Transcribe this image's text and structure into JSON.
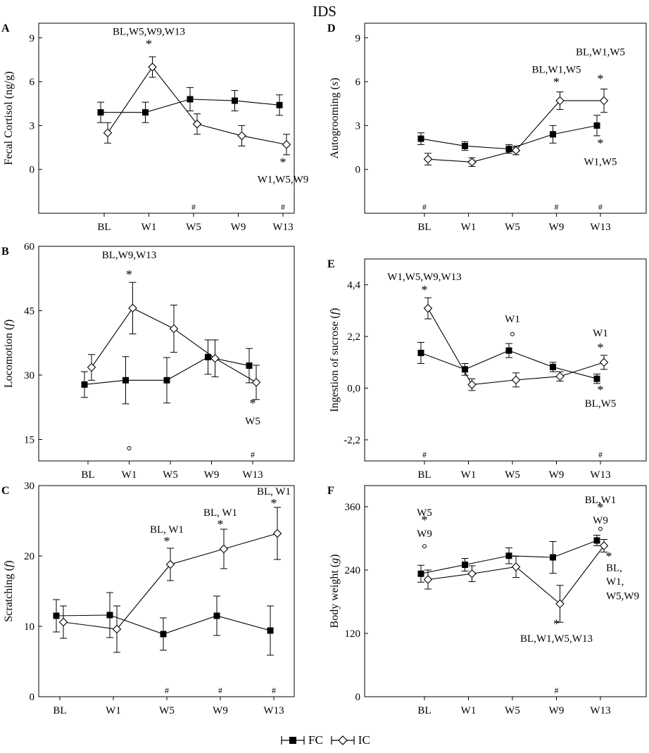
{
  "figure_title": "IDS",
  "legend": {
    "fc": {
      "label": "FC",
      "marker": "filled-square"
    },
    "ic": {
      "label": "IC",
      "marker": "open-diamond"
    }
  },
  "chart_data": [
    {
      "panel": "A",
      "type": "line",
      "ylabel_main": "Fecal Cortisol (ng/g)",
      "categories": [
        "BL",
        "W1",
        "W5",
        "W9",
        "W13"
      ],
      "ylim": [
        -3,
        10
      ],
      "yticks": [
        0,
        3,
        6,
        9
      ],
      "series": [
        {
          "name": "FC",
          "values": [
            3.9,
            3.9,
            4.8,
            4.7,
            4.4
          ],
          "err": [
            0.7,
            0.7,
            0.8,
            0.7,
            0.7
          ]
        },
        {
          "name": "IC",
          "values": [
            2.5,
            7.0,
            3.1,
            2.3,
            1.7
          ],
          "err": [
            0.7,
            0.7,
            0.7,
            0.7,
            0.7
          ]
        }
      ],
      "annotations": [
        {
          "text": "BL,W5,W9,W13",
          "category": "W1",
          "y": 9.2,
          "anchor": "middle"
        },
        {
          "text": "*",
          "category": "W1",
          "y": 8.3,
          "anchor": "middle"
        },
        {
          "text": "*",
          "category": "W13",
          "y": 0.2,
          "anchor": "middle"
        },
        {
          "text": "W1,W5,W9",
          "category": "W13",
          "y": -0.9,
          "anchor": "middle"
        }
      ],
      "hash_marks": [
        "W5",
        "W13"
      ],
      "circle_marks": []
    },
    {
      "panel": "B",
      "type": "line",
      "ylabel_main": "Locomotion",
      "categories": [
        "BL",
        "W1",
        "W5",
        "W9",
        "W13"
      ],
      "ylim": [
        10,
        60
      ],
      "yticks": [
        15,
        30,
        45,
        60
      ],
      "ytick_labels": [
        "15",
        "30",
        "45",
        "60"
      ],
      "series": [
        {
          "name": "FC",
          "values": [
            27.8,
            28.8,
            28.8,
            34.2,
            32.2
          ],
          "err": [
            3.0,
            5.5,
            5.3,
            4.0,
            4.0
          ]
        },
        {
          "name": "IC",
          "values": [
            31.8,
            45.6,
            40.8,
            33.9,
            28.3
          ],
          "err": [
            3.0,
            6.0,
            5.5,
            4.3,
            4.0
          ]
        }
      ],
      "annotations": [
        {
          "text": "BL,W9,W13",
          "category": "W1",
          "y": 57.2,
          "anchor": "middle"
        },
        {
          "text": "*",
          "category": "W1",
          "y": 52.5,
          "anchor": "middle"
        },
        {
          "text": "*",
          "category": "W13",
          "y": 22.5,
          "anchor": "middle"
        },
        {
          "text": "W5",
          "category": "W13",
          "y": 18.5,
          "anchor": "middle"
        }
      ],
      "hash_marks": [
        "W13"
      ],
      "circle_marks": [
        "W1"
      ]
    },
    {
      "panel": "C",
      "type": "line",
      "ylabel_main": "Scratching",
      "categories": [
        "BL",
        "W1",
        "W5",
        "W9",
        "W13"
      ],
      "ylim": [
        0,
        30
      ],
      "yticks": [
        0,
        10,
        20,
        30
      ],
      "series": [
        {
          "name": "FC",
          "values": [
            11.5,
            11.6,
            8.9,
            11.5,
            9.4
          ],
          "err": [
            2.3,
            3.2,
            2.3,
            2.8,
            3.5
          ]
        },
        {
          "name": "IC",
          "values": [
            10.6,
            9.6,
            18.8,
            21.0,
            23.2
          ],
          "err": [
            2.3,
            3.3,
            2.3,
            2.8,
            3.7
          ]
        }
      ],
      "annotations": [
        {
          "text": "BL, W1",
          "category": "W5",
          "y": 23.3,
          "anchor": "middle"
        },
        {
          "text": "*",
          "category": "W5",
          "y": 21.5,
          "anchor": "middle"
        },
        {
          "text": "BL, W1",
          "category": "W9",
          "y": 25.7,
          "anchor": "middle"
        },
        {
          "text": "*",
          "category": "W9",
          "y": 23.9,
          "anchor": "middle"
        },
        {
          "text": "BL, W1",
          "category": "W13",
          "y": 28.7,
          "anchor": "middle"
        },
        {
          "text": "*",
          "category": "W13",
          "y": 26.9,
          "anchor": "middle"
        }
      ],
      "hash_marks": [
        "W5",
        "W9",
        "W13"
      ],
      "circle_marks": []
    },
    {
      "panel": "D",
      "type": "line",
      "ylabel_main": "Autogrooming",
      "categories": [
        "BL",
        "W1",
        "W5",
        "W9",
        "W13"
      ],
      "ylim": [
        -3,
        10
      ],
      "yticks": [
        0,
        3,
        6,
        9
      ],
      "series": [
        {
          "name": "FC",
          "values": [
            2.1,
            1.6,
            1.4,
            2.4,
            3.0
          ],
          "err": [
            0.4,
            0.3,
            0.3,
            0.6,
            0.7
          ]
        },
        {
          "name": "IC",
          "values": [
            0.7,
            0.5,
            1.3,
            4.7,
            4.7
          ],
          "err": [
            0.4,
            0.3,
            0.3,
            0.6,
            0.8
          ]
        }
      ],
      "annotations": [
        {
          "text": "BL,W1,W5",
          "category": "W9",
          "y": 6.6,
          "anchor": "middle"
        },
        {
          "text": "*",
          "category": "W9",
          "y": 5.7,
          "anchor": "middle"
        },
        {
          "text": "BL,W1,W5",
          "category": "W13",
          "y": 7.8,
          "anchor": "middle"
        },
        {
          "text": "*",
          "category": "W13",
          "y": 5.9,
          "anchor": "middle"
        },
        {
          "text": "*",
          "category": "W13",
          "y": 1.5,
          "anchor": "middle"
        },
        {
          "text": "W1,W5",
          "category": "W13",
          "y": 0.3,
          "anchor": "middle"
        }
      ],
      "hash_marks": [
        "BL",
        "W9",
        "W13"
      ],
      "circle_marks": []
    },
    {
      "panel": "E",
      "type": "line",
      "ylabel_main": "Ingestion of sucrose",
      "categories": [
        "BL",
        "W1",
        "W5",
        "W9",
        "W13"
      ],
      "ylim": [
        -3.1,
        5.5
      ],
      "yticks": [
        -2.2,
        0.0,
        2.2,
        4.4
      ],
      "ytick_labels": [
        "-2,2",
        "0,0",
        "2,2",
        "4,4"
      ],
      "series": [
        {
          "name": "FC",
          "values": [
            1.5,
            0.8,
            1.6,
            0.9,
            0.4
          ],
          "err": [
            0.45,
            0.25,
            0.3,
            0.2,
            0.2
          ]
        },
        {
          "name": "IC",
          "values": [
            3.4,
            0.15,
            0.35,
            0.5,
            1.1
          ],
          "err": [
            0.45,
            0.25,
            0.3,
            0.2,
            0.3
          ]
        }
      ],
      "annotations": [
        {
          "text": "W1,W5,W9,W13",
          "category": "BL",
          "y": 4.6,
          "anchor": "middle"
        },
        {
          "text": "*",
          "category": "BL",
          "y": 4.0,
          "anchor": "middle"
        },
        {
          "text": "W1",
          "category": "W5",
          "y": 2.8,
          "anchor": "middle"
        },
        {
          "text": "W1",
          "category": "W13",
          "y": 2.2,
          "anchor": "middle"
        },
        {
          "text": "*",
          "category": "W13",
          "y": 1.55,
          "anchor": "middle"
        },
        {
          "text": "*",
          "category": "W13",
          "y": -0.25,
          "anchor": "middle"
        },
        {
          "text": "BL,W5",
          "category": "W13",
          "y": -0.8,
          "anchor": "middle"
        }
      ],
      "hash_marks": [
        "BL",
        "W13"
      ],
      "circle_marks": [
        "W5"
      ]
    },
    {
      "panel": "F",
      "type": "line",
      "ylabel_main": "Body weight",
      "categories": [
        "BL",
        "W1",
        "W5",
        "W9",
        "W13"
      ],
      "ylim": [
        0,
        400
      ],
      "yticks": [
        0,
        120,
        240,
        360
      ],
      "series": [
        {
          "name": "FC",
          "values": [
            233,
            250,
            267,
            264,
            296
          ],
          "err": [
            16,
            12,
            15,
            30,
            10
          ]
        },
        {
          "name": "IC",
          "values": [
            222,
            233,
            246,
            176,
            286
          ],
          "err": [
            18,
            15,
            20,
            35,
            12
          ]
        }
      ],
      "annotations": [
        {
          "text": "W5",
          "category": "BL",
          "y": 343,
          "anchor": "middle"
        },
        {
          "text": "*",
          "category": "BL",
          "y": 327,
          "anchor": "middle"
        },
        {
          "text": "W9",
          "category": "BL",
          "y": 303,
          "anchor": "middle"
        },
        {
          "text": "BL,W1",
          "category": "W13",
          "y": 367,
          "anchor": "middle"
        },
        {
          "text": "*",
          "category": "W13",
          "y": 351,
          "anchor": "middle"
        },
        {
          "text": "W9",
          "category": "W13",
          "y": 328,
          "anchor": "middle"
        },
        {
          "text": "*",
          "category": "W9",
          "y": 130,
          "anchor": "middle"
        },
        {
          "text": "BL,W1,W5,W13",
          "category": "W9",
          "y": 104,
          "anchor": "middle"
        }
      ],
      "annotations_right": [
        {
          "text": "*",
          "y": 258
        },
        {
          "text": "BL,",
          "y": 238
        },
        {
          "text": "W1,",
          "y": 212
        },
        {
          "text": "W5,W9",
          "y": 185
        }
      ],
      "hash_marks": [
        "W9"
      ],
      "circle_marks": [
        "BL",
        "W13"
      ]
    }
  ]
}
